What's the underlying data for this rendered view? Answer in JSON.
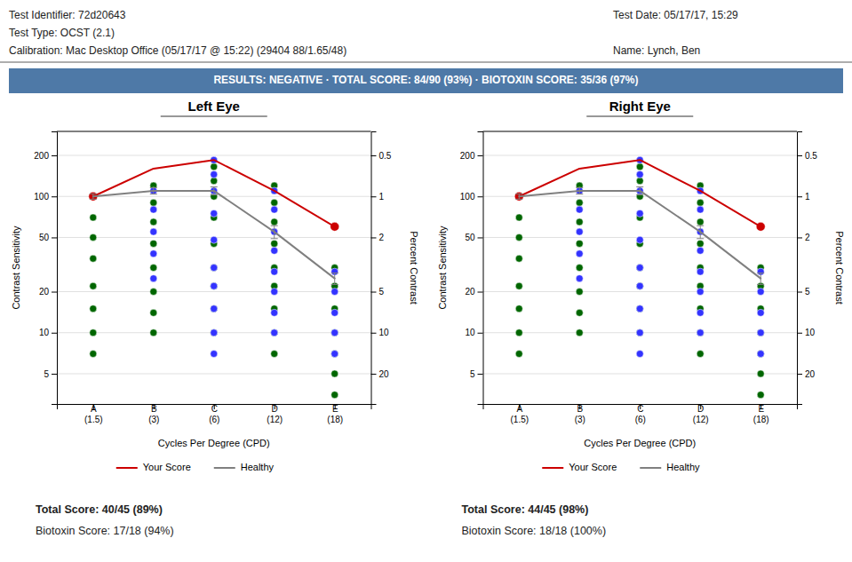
{
  "annotations": [
    "Test Identifier:  72d20643",
    "Test Type:  OCST (2.1)",
    "Calibration:  Mac Desktop Office (05/17/17 @ 15:22) (29404 88/1.65/48)",
    "Test Date:  05/17/17, 15:29",
    "Name:  Lynch, Ben",
    "RESULTS:  NEGATIVE  ·  TOTAL SCORE:  84/90 (93%)  ·  BIOTOXIN SCORE:  35/36 (97%)"
  ],
  "chart_data": [
    {
      "type": "line",
      "title": "Left Eye",
      "xlabel": "Cycles Per Degree (CPD)",
      "ylabel": "Contrast Sensitivity",
      "y2label": "Percent Contrast",
      "categories": [
        "A\n(1.5)",
        "B\n(3)",
        "C\n(6)",
        "D\n(12)",
        "E\n(18)"
      ],
      "log": true,
      "grid": true,
      "legend": "bottom",
      "ylim": [
        3,
        300
      ],
      "yticks": [
        5,
        10,
        20,
        50,
        100,
        200
      ],
      "y2lim": [
        33.333333333333336,
        0.3333333333333333
      ],
      "y2ticks": [
        0.5,
        1,
        2,
        5,
        10,
        20
      ],
      "series": [
        {
          "type": "scatter",
          "color": "#006600",
          "marker": "circle",
          "x": [
            "A\n(1.5)",
            "A\n(1.5)",
            "A\n(1.5)",
            "A\n(1.5)",
            "A\n(1.5)",
            "A\n(1.5)",
            "A\n(1.5)",
            "B\n(3)",
            "B\n(3)",
            "B\n(3)",
            "B\n(3)",
            "B\n(3)",
            "B\n(3)",
            "B\n(3)",
            "B\n(3)",
            "C\n(6)",
            "C\n(6)",
            "C\n(6)",
            "C\n(6)",
            "C\n(6)",
            "C\n(6)",
            "C\n(6)",
            "C\n(6)",
            "C\n(6)",
            "D\n(12)",
            "D\n(12)",
            "D\n(12)",
            "D\n(12)",
            "D\n(12)",
            "D\n(12)",
            "D\n(12)",
            "D\n(12)",
            "D\n(12)",
            "E\n(18)",
            "E\n(18)",
            "E\n(18)",
            "E\n(18)",
            "E\n(18)",
            "E\n(18)",
            "E\n(18)"
          ],
          "values": [
            70,
            50,
            35,
            22,
            15,
            10,
            7,
            120,
            90,
            65,
            45,
            30,
            20,
            14,
            10,
            165,
            130,
            100,
            70,
            45,
            30,
            22,
            15,
            10,
            120,
            90,
            65,
            45,
            30,
            22,
            15,
            10,
            7,
            30,
            22,
            15,
            10,
            7,
            5,
            3.5
          ]
        },
        {
          "type": "scatter",
          "color": "#3333ff",
          "marker": "circle",
          "x": [
            "B\n(3)",
            "B\n(3)",
            "B\n(3)",
            "B\n(3)",
            "B\n(3)",
            "C\n(6)",
            "C\n(6)",
            "C\n(6)",
            "C\n(6)",
            "C\n(6)",
            "C\n(6)",
            "C\n(6)",
            "C\n(6)",
            "C\n(6)",
            "C\n(6)",
            "D\n(12)",
            "D\n(12)",
            "D\n(12)",
            "D\n(12)",
            "D\n(12)",
            "D\n(12)",
            "D\n(12)",
            "D\n(12)",
            "E\n(18)",
            "E\n(18)",
            "E\n(18)",
            "E\n(18)",
            "E\n(18)"
          ],
          "values": [
            110,
            80,
            55,
            38,
            25,
            185,
            145,
            110,
            75,
            48,
            30,
            22,
            15,
            10,
            7,
            110,
            80,
            55,
            40,
            28,
            20,
            14,
            10,
            28,
            20,
            14,
            10,
            7
          ]
        },
        {
          "type": "scatter",
          "color": "#cc0000",
          "marker": "circle",
          "x": [
            "A\n(1.5)",
            "E\n(18)"
          ],
          "values": [
            100,
            60
          ]
        },
        {
          "name": "Your Score",
          "type": "line",
          "color": "#cc0000",
          "values": [
            100,
            160,
            185,
            110,
            60
          ]
        },
        {
          "name": "Healthy",
          "type": "line",
          "color": "#808080",
          "values": [
            100,
            110,
            110,
            55,
            25
          ],
          "errors": [
            4.5,
            6,
            7.5,
            6,
            2.4
          ]
        }
      ],
      "annotations": [
        "Total Score:  40/45 (89%)",
        "Biotoxin Score:  17/18 (94%)"
      ]
    },
    {
      "type": "line",
      "title": "Right Eye",
      "xlabel": "Cycles Per Degree (CPD)",
      "ylabel": "Contrast Sensitivity",
      "y2label": "Percent Contrast",
      "categories": [
        "A\n(1.5)",
        "B\n(3)",
        "C\n(6)",
        "D\n(12)",
        "E\n(18)"
      ],
      "log": true,
      "grid": true,
      "legend": "bottom",
      "ylim": [
        3,
        300
      ],
      "yticks": [
        5,
        10,
        20,
        50,
        100,
        200
      ],
      "y2lim": [
        33.333333333333336,
        0.3333333333333333
      ],
      "y2ticks": [
        0.5,
        1,
        2,
        5,
        10,
        20
      ],
      "series": [
        {
          "type": "scatter",
          "color": "#006600",
          "marker": "circle",
          "x": [
            "A\n(1.5)",
            "A\n(1.5)",
            "A\n(1.5)",
            "A\n(1.5)",
            "A\n(1.5)",
            "A\n(1.5)",
            "A\n(1.5)",
            "B\n(3)",
            "B\n(3)",
            "B\n(3)",
            "B\n(3)",
            "B\n(3)",
            "B\n(3)",
            "B\n(3)",
            "B\n(3)",
            "C\n(6)",
            "C\n(6)",
            "C\n(6)",
            "C\n(6)",
            "C\n(6)",
            "C\n(6)",
            "C\n(6)",
            "C\n(6)",
            "C\n(6)",
            "D\n(12)",
            "D\n(12)",
            "D\n(12)",
            "D\n(12)",
            "D\n(12)",
            "D\n(12)",
            "D\n(12)",
            "D\n(12)",
            "D\n(12)",
            "E\n(18)",
            "E\n(18)",
            "E\n(18)",
            "E\n(18)",
            "E\n(18)",
            "E\n(18)",
            "E\n(18)"
          ],
          "values": [
            70,
            50,
            35,
            22,
            15,
            10,
            7,
            120,
            90,
            65,
            45,
            30,
            20,
            14,
            10,
            165,
            130,
            100,
            70,
            45,
            30,
            22,
            15,
            10,
            120,
            90,
            65,
            45,
            30,
            22,
            15,
            10,
            7,
            30,
            22,
            15,
            10,
            7,
            5,
            3.5
          ]
        },
        {
          "type": "scatter",
          "color": "#3333ff",
          "marker": "circle",
          "x": [
            "B\n(3)",
            "B\n(3)",
            "B\n(3)",
            "B\n(3)",
            "B\n(3)",
            "C\n(6)",
            "C\n(6)",
            "C\n(6)",
            "C\n(6)",
            "C\n(6)",
            "C\n(6)",
            "C\n(6)",
            "C\n(6)",
            "C\n(6)",
            "C\n(6)",
            "D\n(12)",
            "D\n(12)",
            "D\n(12)",
            "D\n(12)",
            "D\n(12)",
            "D\n(12)",
            "D\n(12)",
            "D\n(12)",
            "E\n(18)",
            "E\n(18)",
            "E\n(18)",
            "E\n(18)",
            "E\n(18)"
          ],
          "values": [
            110,
            80,
            55,
            38,
            25,
            185,
            145,
            110,
            75,
            48,
            30,
            22,
            15,
            10,
            7,
            110,
            80,
            55,
            40,
            28,
            20,
            14,
            10,
            28,
            20,
            14,
            10,
            7
          ]
        },
        {
          "type": "scatter",
          "color": "#cc0000",
          "marker": "circle",
          "x": [
            "A\n(1.5)",
            "E\n(18)"
          ],
          "values": [
            100,
            60
          ]
        },
        {
          "name": "Your Score",
          "type": "line",
          "color": "#cc0000",
          "values": [
            100,
            160,
            185,
            110,
            60
          ]
        },
        {
          "name": "Healthy",
          "type": "line",
          "color": "#808080",
          "values": [
            100,
            110,
            110,
            55,
            25
          ],
          "errors": [
            4.5,
            6,
            7.5,
            6,
            2.4
          ]
        }
      ],
      "annotations": [
        "Total Score:  44/45 (98%)",
        "Biotoxin Score:  18/18 (100%)"
      ]
    }
  ]
}
